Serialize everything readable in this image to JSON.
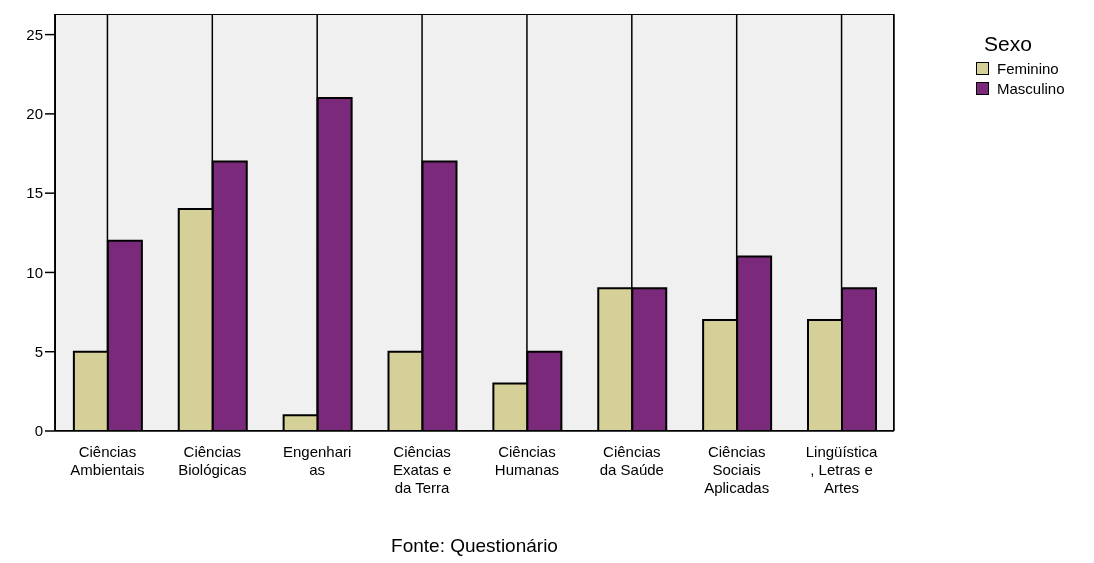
{
  "chart_data": {
    "type": "bar",
    "categories": [
      "Ciências\nAmbientais",
      "Ciências\nBiológicas",
      "Engenhari\nas",
      "Ciências\nExatas e\nda Terra",
      "Ciências\nHumanas",
      "Ciências\nda Saúde",
      "Ciências\nSociais\nAplicadas",
      "Lingüística\n, Letras e\nArtes"
    ],
    "series": [
      {
        "name": "Feminino",
        "color": "#d4d098",
        "values": [
          5,
          14,
          1,
          5,
          3,
          9,
          7,
          7
        ]
      },
      {
        "name": "Masculino",
        "color": "#7b2a7b",
        "values": [
          12,
          17,
          21,
          17,
          5,
          9,
          11,
          9
        ]
      }
    ],
    "ylim": [
      0,
      26.3
    ],
    "yticks": [
      0,
      5,
      10,
      15,
      20,
      25
    ],
    "grid": "x",
    "legend": "top right",
    "legend_title": "Sexo",
    "annotations": [
      "Fonte: Questionário"
    ]
  }
}
